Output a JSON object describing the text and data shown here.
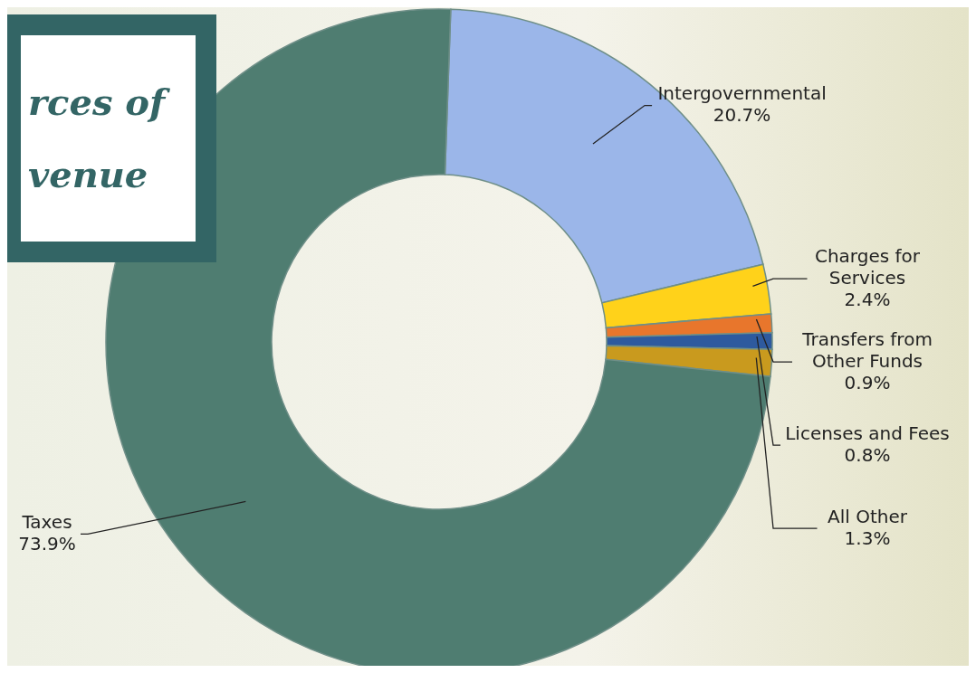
{
  "chart_data": {
    "type": "donut",
    "title": "rces of venue",
    "categories": [
      "Intergovernmental",
      "Charges for Services",
      "Transfers from Other Funds",
      "Licenses and Fees",
      "All Other",
      "Taxes"
    ],
    "values": [
      20.7,
      2.4,
      0.9,
      0.8,
      1.3,
      73.9
    ],
    "colors": [
      "#9bb6e9",
      "#ffd21a",
      "#e8762c",
      "#2e5a9e",
      "#c99a1e",
      "#4f7d71"
    ],
    "value_labels": [
      "20.7%",
      "2.4%",
      "0.9%",
      "0.8%",
      "1.3%",
      "73.9%"
    ],
    "legend": false
  }
}
